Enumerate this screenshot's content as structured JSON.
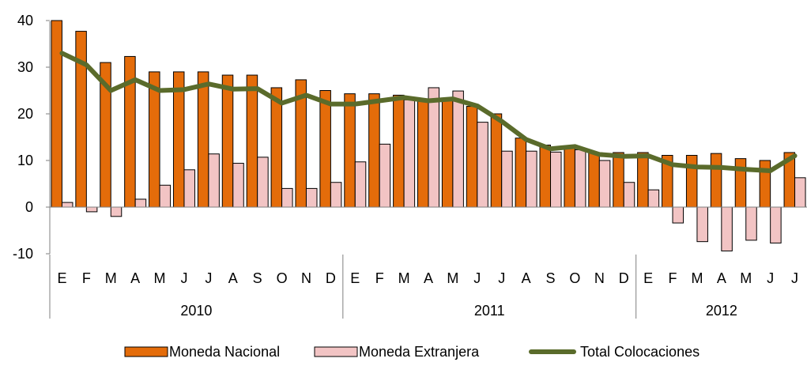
{
  "chart_data": {
    "type": "bar",
    "categories": [
      "E",
      "F",
      "M",
      "A",
      "M",
      "J",
      "J",
      "A",
      "S",
      "O",
      "N",
      "D",
      "E",
      "F",
      "M",
      "A",
      "M",
      "J",
      "J",
      "A",
      "S",
      "O",
      "N",
      "D",
      "E",
      "F",
      "M",
      "A",
      "M",
      "J",
      "J"
    ],
    "groups": [
      {
        "label": "2010",
        "count": 12
      },
      {
        "label": "2011",
        "count": 12
      },
      {
        "label": "2012",
        "count": 7
      }
    ],
    "series": [
      {
        "name": "Moneda Nacional",
        "type": "bar",
        "color": "#E46C0A",
        "values": [
          40,
          37.7,
          31,
          32.3,
          29,
          29,
          29,
          28.3,
          28.3,
          25.6,
          27.3,
          25,
          24.3,
          24.3,
          24,
          23,
          23,
          21.6,
          20,
          14.8,
          13.3,
          12.8,
          11.7,
          11.7,
          11.7,
          11.1,
          11.1,
          11.5,
          10.4,
          10,
          11.7
        ]
      },
      {
        "name": "Moneda Extranjera",
        "type": "bar",
        "color": "#F2C4C4",
        "values": [
          1,
          -1,
          -2,
          1.7,
          4.7,
          8,
          11.4,
          9.4,
          10.7,
          4,
          4,
          5.3,
          9.7,
          13.5,
          23,
          25.6,
          24.9,
          18.2,
          12,
          12,
          11.8,
          12.3,
          10,
          5.3,
          3.7,
          -3.4,
          -7.4,
          -9.4,
          -7.1,
          -7.7,
          6.3
        ]
      },
      {
        "name": "Total Colocaciones",
        "type": "line",
        "color": "#5A6B2B",
        "values": [
          33,
          30.5,
          25,
          27.3,
          25,
          25.2,
          26.4,
          25.3,
          25.4,
          22.3,
          24,
          22.1,
          22.1,
          22.8,
          23.5,
          22.8,
          23.2,
          21.7,
          18.4,
          14.5,
          12.5,
          13,
          11.3,
          10.9,
          11,
          9.1,
          8.6,
          8.5,
          8.1,
          7.8,
          11
        ]
      }
    ],
    "yticks": [
      -10,
      0,
      10,
      20,
      30,
      40
    ],
    "ylim": [
      -10,
      40
    ],
    "legend_position": "bottom"
  }
}
